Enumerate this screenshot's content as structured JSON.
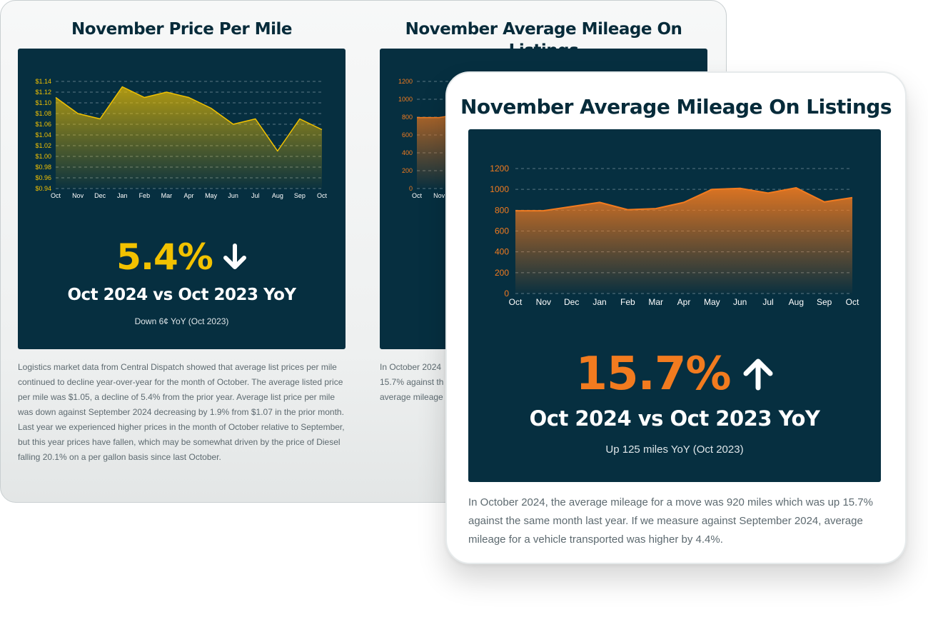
{
  "colors": {
    "navy": "#062f40",
    "yellow": "#f2c200",
    "orange": "#f27b1f",
    "title": "#062b3a"
  },
  "left": {
    "title": "November Price Per Mile",
    "stat_value": "5.4%",
    "stat_direction": "down",
    "compare": "Oct 2024 vs Oct 2023 YoY",
    "sub": "Down 6¢ YoY (Oct 2023)",
    "paragraph": "Logistics market data from Central Dispatch showed that average list prices per mile continued to decline year-over-year for the month of October. The average listed price per mile was $1.05, a decline of 5.4% from the prior year. Average list price per mile was down against September 2024 decreasing by 1.9% from $1.07 in the prior month. Last year we experienced higher prices in the month of October relative to September, but this year prices have fallen, which may be somewhat driven by the price of Diesel falling 20.1% on a per gallon basis since last October."
  },
  "middle": {
    "title": "November Average Mileage On Listings",
    "paragraph_lines": [
      "In October 2024",
      "15.7% against th",
      "average mileage"
    ]
  },
  "front": {
    "title": "November Average Mileage On Listings",
    "stat_value": "15.7%",
    "stat_direction": "up",
    "compare": "Oct 2024 vs Oct 2023 YoY",
    "sub": "Up 125 miles YoY (Oct 2023)",
    "paragraph": "In October 2024, the average mileage for a move was 920 miles which was up 15.7% against the same month last year. If we measure against September 2024, average mileage for a vehicle transported was higher by 4.4%."
  },
  "chart_data": [
    {
      "type": "area",
      "x": [
        "Oct",
        "Nov",
        "Dec",
        "Jan",
        "Feb",
        "Mar",
        "Apr",
        "May",
        "Jun",
        "Jul",
        "Aug",
        "Sep",
        "Oct"
      ],
      "values": [
        1.11,
        1.08,
        1.07,
        1.13,
        1.11,
        1.12,
        1.11,
        1.09,
        1.06,
        1.07,
        1.01,
        1.07,
        1.05
      ],
      "yticks": [
        "$1.14",
        "$1.12",
        "$1.10",
        "$1.08",
        "$1.06",
        "$1.04",
        "$1.02",
        "$1.00",
        "$0.98",
        "$0.96",
        "$0.94"
      ],
      "ylim": [
        0.94,
        1.14
      ],
      "grid": true,
      "color": "#f2c200"
    },
    {
      "type": "area",
      "x": [
        "Oct",
        "Nov",
        "Dec",
        "Jan",
        "Feb",
        "Mar",
        "Apr",
        "May",
        "Jun",
        "Jul",
        "Aug",
        "Sep",
        "Oct"
      ],
      "values": [
        795,
        795,
        835,
        875,
        805,
        815,
        875,
        1000,
        1010,
        965,
        1015,
        880,
        920
      ],
      "yticks": [
        "1200",
        "1000",
        "800",
        "600",
        "400",
        "200",
        "0"
      ],
      "ylim": [
        0,
        1200
      ],
      "grid": true,
      "color": "#f27b1f"
    }
  ]
}
